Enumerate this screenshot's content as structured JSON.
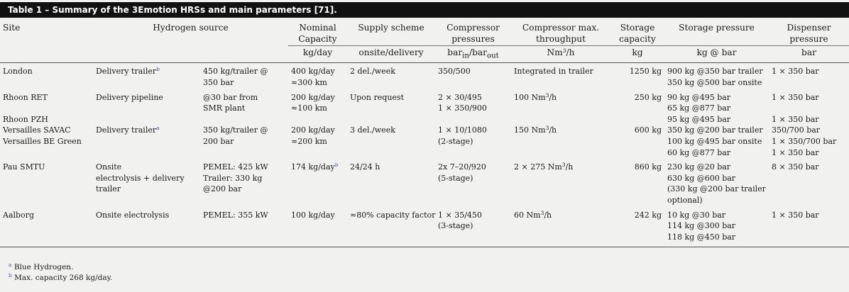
{
  "title": "Table 1 – Summary of the 3Emotion HRSs and main parameters [71].",
  "headers": {
    "site": "Site",
    "hydrogen_source": "Hydrogen source",
    "nominal_capacity": "Nominal Capacity",
    "supply_scheme": "Supply scheme",
    "compressor_pressures": "Compressor pressures",
    "compressor_throughput": "Compressor max. throughput",
    "storage_capacity": "Storage capacity",
    "storage_pressure": "Storage pressure",
    "dispenser_pressure": "Dispenser pressure"
  },
  "units": {
    "nominal_capacity": "kg/day",
    "supply_scheme": "onsite/delivery",
    "compressor_pressures": "bar",
    "compressor_in": "in",
    "compressor_slash": "/bar",
    "compressor_out": "out",
    "compressor_throughput": "Nm",
    "compressor_throughput_exp": "3",
    "compressor_throughput_tail": "/h",
    "storage_capacity": "kg",
    "storage_pressure": "kg @ bar",
    "dispenser_pressure": "bar"
  },
  "rows": {
    "london": {
      "site": "London",
      "source": "Delivery trailer",
      "source_sup": "b",
      "source_detail": [
        "450 kg/trailer @",
        "350 bar"
      ],
      "capacity": [
        "400 kg/day",
        "≈300 km"
      ],
      "supply": "2 del./week",
      "compressor": [
        "350/500"
      ],
      "throughput": "Integrated in trailer",
      "storage_cap": "1250 kg",
      "storage_pressure": [
        "900 kg @350 bar trailer",
        "350 kg @500 bar onsite"
      ],
      "dispenser": [
        "1 × 350 bar"
      ]
    },
    "rhoon_ret": {
      "site": "Rhoon RET",
      "source": "Delivery pipeline",
      "source_detail": [
        "@30 bar from",
        "SMR plant"
      ],
      "capacity": [
        "200 kg/day",
        "≈100 km"
      ],
      "supply": "Upon request",
      "compressor": [
        "2 × 30/495",
        "1 × 350/900"
      ],
      "throughput": "100 Nm",
      "throughput_exp": "3",
      "throughput_tail": "/h",
      "storage_cap": "250 kg",
      "storage_pressure": [
        "90 kg @495 bar",
        "65 kg @877 bar"
      ],
      "dispenser": [
        "1 × 350 bar"
      ]
    },
    "rhoon_pzh": {
      "site": "Rhoon PZH",
      "storage_pressure": [
        "95 kg @495 bar"
      ],
      "dispenser": [
        "1 × 350 bar"
      ]
    },
    "versailles": {
      "site": [
        "Versailles SAVAC",
        "Versailles BE Green"
      ],
      "source": "Delivery trailer",
      "source_sup": "a",
      "source_detail": [
        "350 kg/trailer @",
        "200 bar"
      ],
      "capacity": [
        "200 kg/day",
        "≈200 km"
      ],
      "supply": "3 del./week",
      "compressor": [
        "1 × 10/1080",
        "(2-stage)"
      ],
      "throughput": "150 Nm",
      "throughput_exp": "3",
      "throughput_tail": "/h",
      "storage_cap": "600 kg",
      "storage_pressure": [
        "350 kg @200 bar trailer",
        "100 kg @495 bar onsite",
        "60 kg @877 bar"
      ],
      "dispenser": [
        "350/700 bar",
        "1 × 350/700 bar",
        "1 × 350 bar"
      ]
    },
    "pau": {
      "site": "Pau SMTU",
      "source": [
        "Onsite",
        "electrolysis + delivery",
        "trailer"
      ],
      "source_detail": [
        "PEMEL: 425 kW",
        "Trailer: 330 kg",
        "@200 bar"
      ],
      "capacity": [
        "174 kg/day"
      ],
      "capacity_sup": "b",
      "supply": "24/24 h",
      "compressor": [
        "2x 7–20/920",
        "(5-stage)"
      ],
      "throughput": "2 × 275 Nm",
      "throughput_exp": "3",
      "throughput_tail": "/h",
      "storage_cap": "860 kg",
      "storage_pressure": [
        "230 kg @20 bar",
        "630 kg @600 bar",
        "(330 kg @200 bar trailer",
        "optional)"
      ],
      "dispenser": [
        "8 × 350 bar"
      ]
    },
    "aalborg": {
      "site": "Aalborg",
      "source": "Onsite electrolysis",
      "source_detail": [
        "PEMEL: 355 kW"
      ],
      "capacity": [
        "100 kg/day"
      ],
      "supply": "≈80% capacity factor",
      "compressor": [
        "1 × 35/450",
        "(3-stage)"
      ],
      "throughput": "60 Nm",
      "throughput_exp": "3",
      "throughput_tail": "/h",
      "storage_cap": "242 kg",
      "storage_pressure": [
        "10 kg @30 bar",
        "114 kg @300 bar",
        "118 kg @450 bar"
      ],
      "dispenser": [
        "1 × 350 bar"
      ]
    }
  },
  "footnotes": [
    {
      "mark": "a",
      "text": "Blue Hydrogen."
    },
    {
      "mark": "b",
      "text": "Max. capacity 268 kg/day."
    }
  ],
  "colors": {
    "title_bar": "#111111",
    "footnote_link": "#3b5fb2",
    "page_bg": "#f1f1ef"
  }
}
